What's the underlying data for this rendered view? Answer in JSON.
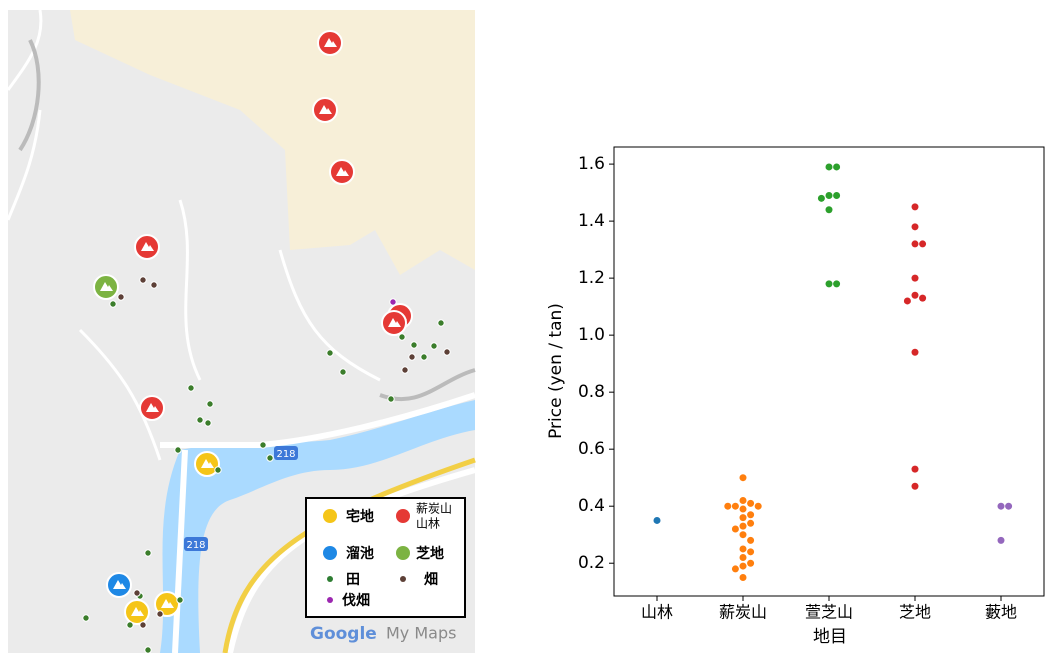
{
  "map": {
    "legend": {
      "items": [
        "宅地",
        [
          "薪炭山",
          "山林"
        ],
        "溜池",
        "芝地",
        "田",
        "畑",
        "伐畑"
      ]
    },
    "road_labels": [
      "218",
      "218"
    ],
    "attribution": {
      "brand": "Google",
      "product": "My Maps"
    }
  },
  "chart_data": {
    "type": "swarm",
    "xlabel": "地目",
    "ylabel": "Price (yen / tan)",
    "categories": [
      "山林",
      "薪炭山",
      "萱芝山",
      "芝地",
      "藪地"
    ],
    "colors": [
      "#1f77b4",
      "#ff7f0e",
      "#2ca02c",
      "#d62728",
      "#9467bd"
    ],
    "values": [
      [
        0.35
      ],
      [
        0.5,
        0.42,
        0.41,
        0.4,
        0.4,
        0.4,
        0.39,
        0.37,
        0.36,
        0.34,
        0.33,
        0.32,
        0.3,
        0.28,
        0.25,
        0.24,
        0.22,
        0.2,
        0.19,
        0.18,
        0.15
      ],
      [
        1.59,
        1.59,
        1.49,
        1.49,
        1.48,
        1.44,
        1.18,
        1.18
      ],
      [
        1.45,
        1.38,
        1.32,
        1.32,
        1.2,
        1.14,
        1.13,
        1.12,
        0.94,
        0.53,
        0.47
      ],
      [
        0.4,
        0.4,
        0.28
      ]
    ],
    "ylim": [
      0.085,
      1.66
    ],
    "yticks": [
      0.2,
      0.4,
      0.6,
      0.8,
      {
        "value": 1,
        "label": "1.0"
      },
      1.2,
      1.4,
      1.6
    ]
  }
}
